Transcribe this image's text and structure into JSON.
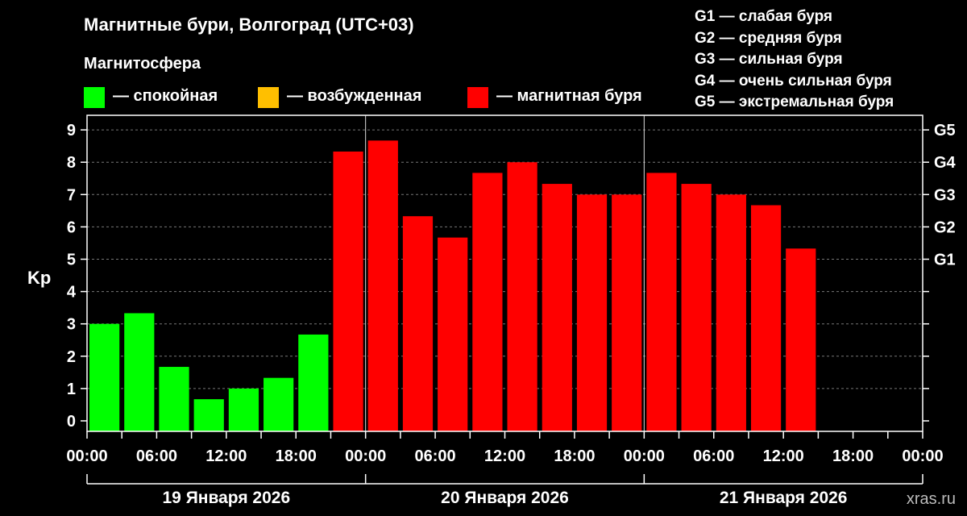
{
  "title": "Магнитные бури, Волгоград (UTC+03)",
  "legend": {
    "heading": "Магнитосфера",
    "items": [
      {
        "label": "— спокойная",
        "color": "#00ff00"
      },
      {
        "label": "— возбужденная",
        "color": "#ffbf00"
      },
      {
        "label": "— магнитная буря",
        "color": "#ff0000"
      }
    ]
  },
  "g_scale": [
    "G1 — слабая буря",
    "G2 — средняя буря",
    "G3 — сильная буря",
    "G4 — очень сильная буря",
    "G5 — экстремальная буря"
  ],
  "watermark": "xras.ru",
  "chart_data": {
    "type": "bar",
    "ylabel": "Kp",
    "ylim": [
      0,
      9
    ],
    "y_ticks": [
      0,
      1,
      2,
      3,
      4,
      5,
      6,
      7,
      8,
      9
    ],
    "right_ticks": [
      {
        "value": 5,
        "label": "G1"
      },
      {
        "value": 6,
        "label": "G2"
      },
      {
        "value": 7,
        "label": "G3"
      },
      {
        "value": 8,
        "label": "G4"
      },
      {
        "value": 9,
        "label": "G5"
      }
    ],
    "x_tick_labels": [
      "00:00",
      "06:00",
      "12:00",
      "18:00",
      "00:00",
      "06:00",
      "12:00",
      "18:00",
      "00:00",
      "06:00",
      "12:00",
      "18:00",
      "00:00"
    ],
    "days": [
      "19 Января 2026",
      "20 Января 2026",
      "21 Января 2026"
    ],
    "bars_per_day": 8,
    "total_slots": 24,
    "values": [
      3.0,
      3.33,
      1.67,
      0.67,
      1.0,
      1.33,
      2.67,
      8.33,
      8.67,
      6.33,
      5.67,
      7.67,
      8.0,
      7.33,
      7.0,
      7.0,
      7.67,
      7.33,
      7.0,
      6.67,
      5.33
    ],
    "colors": {
      "quiet": "#00ff00",
      "active": "#ffbf00",
      "storm": "#ff0000"
    },
    "grid": true
  }
}
